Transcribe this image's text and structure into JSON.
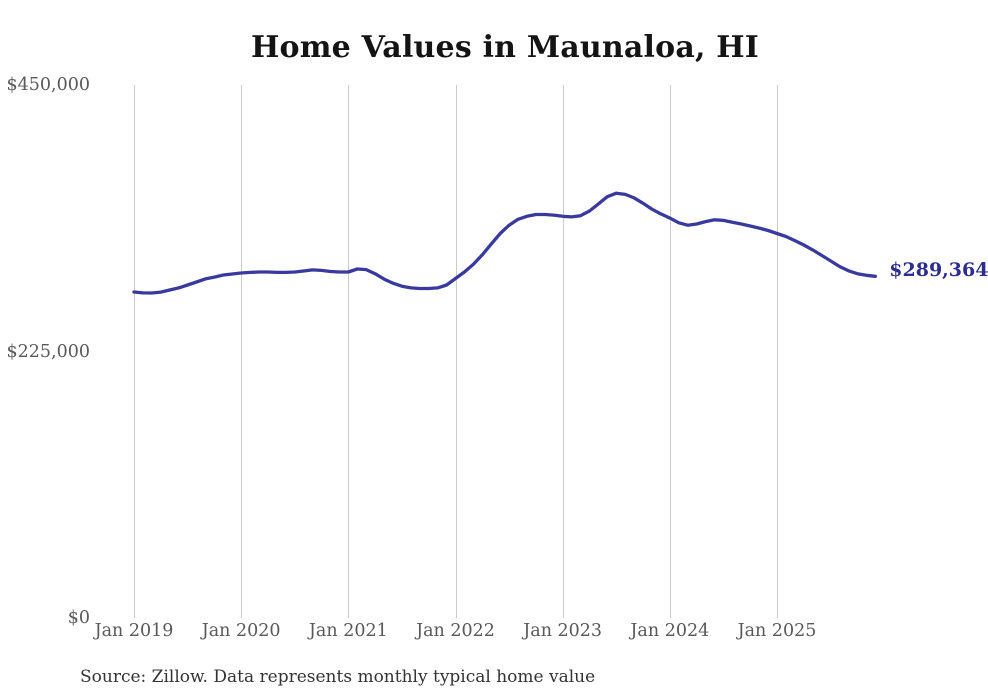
{
  "page": {
    "title": "Home Values in Maunaloa, HI",
    "source_note": "Source: Zillow. Data represents monthly typical home value"
  },
  "chart_data": {
    "type": "line",
    "title": "Home Values in Maunaloa, HI",
    "end_label": "$289,364",
    "line_color": "#3a3a9e",
    "gridline_color": "#cccccc",
    "axis_label_color": "#595959",
    "grid": "vertical-only",
    "legend": "none",
    "xlabel": "",
    "ylabel": "",
    "y_axis": {
      "ylim": [
        0,
        450000
      ],
      "ticks": [
        {
          "label": "$0",
          "value": 0
        },
        {
          "label": "$225,000",
          "value": 225000
        },
        {
          "label": "$450,000",
          "value": 450000
        }
      ]
    },
    "x_axis": {
      "tick_labels": [
        "Jan 2019",
        "Jan 2020",
        "Jan 2021",
        "Jan 2022",
        "Jan 2023",
        "Jan 2024",
        "Jan 2025"
      ],
      "months_per_tick": 12
    },
    "series": [
      {
        "name": "Monthly typical home value",
        "months": [
          "2019-01",
          "2019-02",
          "2019-03",
          "2019-04",
          "2019-05",
          "2019-06",
          "2019-07",
          "2019-08",
          "2019-09",
          "2019-10",
          "2019-11",
          "2019-12",
          "2020-01",
          "2020-02",
          "2020-03",
          "2020-04",
          "2020-05",
          "2020-06",
          "2020-07",
          "2020-08",
          "2020-09",
          "2020-10",
          "2020-11",
          "2020-12",
          "2021-01",
          "2021-02",
          "2021-03",
          "2021-04",
          "2021-05",
          "2021-06",
          "2021-07",
          "2021-08",
          "2021-09",
          "2021-10",
          "2021-11",
          "2021-12",
          "2022-01",
          "2022-02",
          "2022-03",
          "2022-04",
          "2022-05",
          "2022-06",
          "2022-07",
          "2022-08",
          "2022-09",
          "2022-10",
          "2022-11",
          "2022-12",
          "2023-01",
          "2023-02",
          "2023-03",
          "2023-04",
          "2023-05",
          "2023-06",
          "2023-07",
          "2023-08",
          "2023-09",
          "2023-10",
          "2023-11",
          "2023-12",
          "2024-01",
          "2024-02",
          "2024-03",
          "2024-04",
          "2024-05",
          "2024-06",
          "2024-07",
          "2024-08",
          "2024-09",
          "2024-10",
          "2024-11",
          "2024-12",
          "2025-01",
          "2025-02",
          "2025-03",
          "2025-04",
          "2025-05",
          "2025-06",
          "2025-07",
          "2025-08",
          "2025-09",
          "2025-10",
          "2025-11",
          "2025-12"
        ],
        "values": [
          276100,
          275300,
          275200,
          276000,
          277800,
          279500,
          282000,
          284500,
          287100,
          288700,
          290400,
          291300,
          292100,
          292600,
          293000,
          293000,
          292600,
          292600,
          293000,
          293800,
          294700,
          294300,
          293400,
          293000,
          293000,
          295500,
          295000,
          291500,
          287000,
          283500,
          281000,
          279500,
          279000,
          279000,
          279500,
          282000,
          287500,
          293000,
          299500,
          307500,
          316500,
          325500,
          332500,
          337500,
          340000,
          341500,
          341500,
          341000,
          340000,
          339500,
          340500,
          344500,
          350500,
          356500,
          359500,
          358500,
          355500,
          351000,
          346000,
          342000,
          338500,
          334500,
          332500,
          333500,
          335500,
          337000,
          336500,
          335000,
          333500,
          331800,
          330000,
          328000,
          325500,
          322900,
          319500,
          315800,
          311600,
          307000,
          302300,
          297600,
          294000,
          291500,
          290200,
          289364
        ],
        "last_value": 289364
      }
    ]
  }
}
